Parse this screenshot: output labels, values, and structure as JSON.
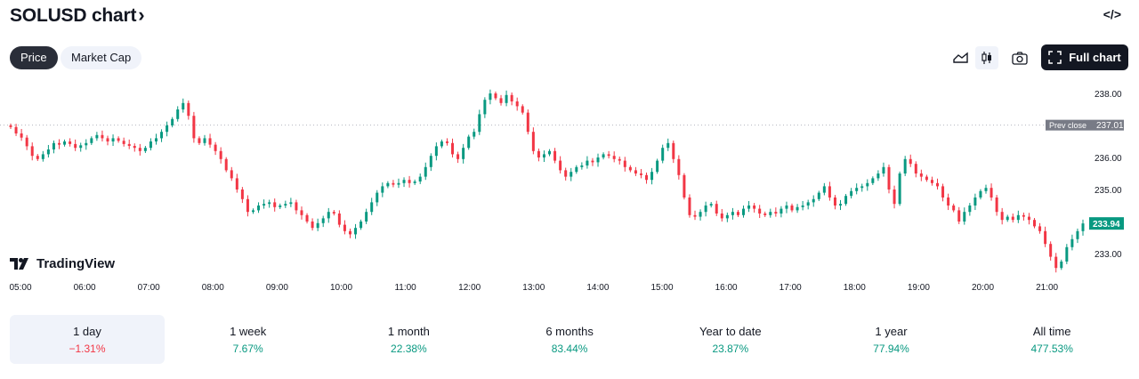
{
  "header": {
    "title": "SOLUSD chart",
    "chevron": "›",
    "embed_label": "</>"
  },
  "tabs": [
    {
      "label": "Price",
      "active": true
    },
    {
      "label": "Market Cap",
      "active": false
    }
  ],
  "toolbar": {
    "icons": [
      "area-chart-icon",
      "candles-icon",
      "camera-icon",
      "fullscreen-icon"
    ],
    "full_chart_label": "Full chart"
  },
  "logo": {
    "text": "TradingView"
  },
  "colors": {
    "up": "#089981",
    "down": "#f23645",
    "accent": "#131722",
    "prev_close_tag": "#787b86"
  },
  "chart_data": {
    "type": "candlestick",
    "yticks": [
      "238.00",
      "236.00",
      "235.00",
      "233.00"
    ],
    "ylim": [
      232.3,
      238.4
    ],
    "xticks": [
      "05:00",
      "06:00",
      "07:00",
      "08:00",
      "09:00",
      "10:00",
      "11:00",
      "12:00",
      "13:00",
      "14:00",
      "15:00",
      "16:00",
      "17:00",
      "18:00",
      "19:00",
      "20:00",
      "21:00"
    ],
    "prev_close": {
      "label": "Prev close",
      "value": 237.01
    },
    "last_price": {
      "label": "233.94",
      "value": 233.94
    },
    "series_close": [
      236.95,
      236.75,
      236.62,
      236.35,
      236.05,
      235.95,
      236.1,
      236.25,
      236.45,
      236.4,
      236.5,
      236.42,
      236.3,
      236.38,
      236.45,
      236.6,
      236.7,
      236.6,
      236.5,
      236.6,
      236.52,
      236.42,
      236.36,
      236.3,
      236.2,
      236.3,
      236.5,
      236.6,
      236.8,
      237.0,
      237.2,
      237.5,
      237.7,
      237.3,
      236.6,
      236.45,
      236.6,
      236.4,
      236.2,
      235.95,
      235.6,
      235.35,
      235.0,
      234.7,
      234.3,
      234.35,
      234.5,
      234.55,
      234.6,
      234.45,
      234.5,
      234.55,
      234.6,
      234.35,
      234.2,
      234.0,
      233.8,
      233.95,
      234.1,
      234.3,
      234.25,
      233.9,
      233.7,
      233.6,
      233.8,
      234.0,
      234.3,
      234.6,
      234.9,
      235.1,
      235.2,
      235.15,
      235.2,
      235.3,
      235.2,
      235.25,
      235.4,
      235.7,
      236.05,
      236.35,
      236.5,
      236.45,
      236.1,
      235.95,
      236.3,
      236.65,
      236.8,
      237.35,
      237.8,
      238.0,
      237.85,
      237.7,
      237.95,
      237.75,
      237.6,
      237.4,
      236.8,
      236.2,
      236.0,
      236.1,
      236.2,
      235.9,
      235.6,
      235.4,
      235.55,
      235.7,
      235.75,
      235.9,
      235.85,
      236.0,
      236.1,
      236.05,
      235.95,
      235.9,
      235.7,
      235.6,
      235.5,
      235.45,
      235.3,
      235.55,
      235.9,
      236.3,
      236.45,
      235.95,
      235.45,
      234.75,
      234.2,
      234.15,
      234.3,
      234.5,
      234.55,
      234.25,
      234.1,
      234.2,
      234.3,
      234.2,
      234.4,
      234.5,
      234.4,
      234.25,
      234.2,
      234.3,
      234.25,
      234.4,
      234.5,
      234.35,
      234.45,
      234.5,
      234.6,
      234.7,
      234.9,
      235.1,
      234.75,
      234.5,
      234.55,
      234.8,
      234.95,
      235.05,
      235.1,
      235.2,
      235.35,
      235.5,
      235.7,
      235.0,
      234.55,
      235.5,
      235.95,
      235.8,
      235.5,
      235.4,
      235.3,
      235.2,
      235.1,
      234.75,
      234.5,
      234.35,
      234.0,
      234.3,
      234.5,
      234.75,
      234.95,
      235.05,
      234.75,
      234.3,
      234.05,
      234.15,
      234.05,
      234.2,
      234.15,
      234.05,
      233.85,
      233.7,
      233.3,
      232.9,
      232.55,
      232.75,
      233.2,
      233.45,
      233.7,
      233.94
    ]
  },
  "ranges": [
    {
      "label": "1 day",
      "value": "−1.31%",
      "dir": "neg",
      "selected": true
    },
    {
      "label": "1 week",
      "value": "7.67%",
      "dir": "pos",
      "selected": false
    },
    {
      "label": "1 month",
      "value": "22.38%",
      "dir": "pos",
      "selected": false
    },
    {
      "label": "6 months",
      "value": "83.44%",
      "dir": "pos",
      "selected": false
    },
    {
      "label": "Year to date",
      "value": "23.87%",
      "dir": "pos",
      "selected": false
    },
    {
      "label": "1 year",
      "value": "77.94%",
      "dir": "pos",
      "selected": false
    },
    {
      "label": "All time",
      "value": "477.53%",
      "dir": "pos",
      "selected": false
    }
  ]
}
